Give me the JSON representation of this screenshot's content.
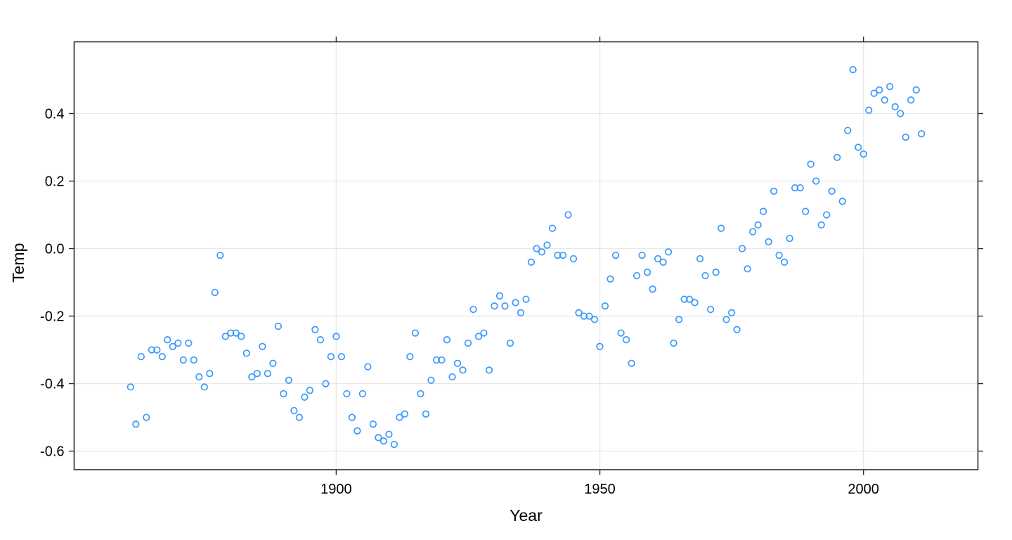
{
  "figure": {
    "background": "#ffffff",
    "border_color": "#2b2b2b",
    "grid_color": "#e8e8e8",
    "tick_color": "#2b2b2b",
    "text_color": "#000000",
    "point_color": "#3b99fc"
  },
  "chart_data": {
    "type": "scatter",
    "title": "",
    "xlabel": "Year",
    "ylabel": "Temp",
    "grid": true,
    "legend": "none",
    "marker": "open-circle",
    "xlim": [
      1850.3,
      2021.7
    ],
    "ylim": [
      -0.655,
      0.6125
    ],
    "x_ticks": [
      1900,
      1950,
      2000
    ],
    "x_tick_labels": [
      "1900",
      "1950",
      "2000"
    ],
    "y_ticks": [
      0.4,
      0.2,
      0.0,
      -0.2,
      -0.4,
      -0.6
    ],
    "y_tick_labels": [
      "0.4",
      "0.2",
      "0.0",
      "-0.2",
      "-0.4",
      "-0.6"
    ],
    "series": [
      {
        "name": "Temp",
        "x": [
          1861,
          1862,
          1863,
          1864,
          1865,
          1866,
          1867,
          1868,
          1869,
          1870,
          1871,
          1872,
          1873,
          1874,
          1875,
          1876,
          1877,
          1878,
          1879,
          1880,
          1881,
          1882,
          1883,
          1884,
          1885,
          1886,
          1887,
          1888,
          1889,
          1890,
          1891,
          1892,
          1893,
          1894,
          1895,
          1896,
          1897,
          1898,
          1899,
          1900,
          1901,
          1902,
          1903,
          1904,
          1905,
          1906,
          1907,
          1908,
          1909,
          1910,
          1911,
          1912,
          1913,
          1914,
          1915,
          1916,
          1917,
          1918,
          1919,
          1920,
          1921,
          1922,
          1923,
          1924,
          1925,
          1926,
          1927,
          1928,
          1929,
          1930,
          1931,
          1932,
          1933,
          1934,
          1935,
          1936,
          1937,
          1938,
          1939,
          1940,
          1941,
          1942,
          1943,
          1944,
          1945,
          1946,
          1947,
          1948,
          1949,
          1950,
          1951,
          1952,
          1953,
          1954,
          1955,
          1956,
          1957,
          1958,
          1959,
          1960,
          1961,
          1962,
          1963,
          1964,
          1965,
          1966,
          1967,
          1968,
          1969,
          1970,
          1971,
          1972,
          1973,
          1974,
          1975,
          1976,
          1977,
          1978,
          1979,
          1980,
          1981,
          1982,
          1983,
          1984,
          1985,
          1986,
          1987,
          1988,
          1989,
          1990,
          1991,
          1992,
          1993,
          1994,
          1995,
          1996,
          1997,
          1998,
          1999,
          2000,
          2001,
          2002,
          2003,
          2004,
          2005,
          2006,
          2007,
          2008,
          2009,
          2010,
          2011
        ],
        "y": [
          -0.41,
          -0.52,
          -0.32,
          -0.5,
          -0.3,
          -0.3,
          -0.32,
          -0.27,
          -0.29,
          -0.28,
          -0.33,
          -0.28,
          -0.33,
          -0.38,
          -0.41,
          -0.37,
          -0.13,
          -0.02,
          -0.26,
          -0.25,
          -0.25,
          -0.26,
          -0.31,
          -0.38,
          -0.37,
          -0.29,
          -0.37,
          -0.34,
          -0.23,
          -0.43,
          -0.39,
          -0.48,
          -0.5,
          -0.44,
          -0.42,
          -0.24,
          -0.27,
          -0.4,
          -0.32,
          -0.26,
          -0.32,
          -0.43,
          -0.5,
          -0.54,
          -0.43,
          -0.35,
          -0.52,
          -0.56,
          -0.57,
          -0.55,
          -0.58,
          -0.5,
          -0.49,
          -0.32,
          -0.25,
          -0.43,
          -0.49,
          -0.39,
          -0.33,
          -0.33,
          -0.27,
          -0.38,
          -0.34,
          -0.36,
          -0.28,
          -0.18,
          -0.26,
          -0.25,
          -0.36,
          -0.17,
          -0.14,
          -0.17,
          -0.28,
          -0.16,
          -0.19,
          -0.15,
          -0.04,
          0.0,
          -0.01,
          0.01,
          0.06,
          -0.02,
          -0.02,
          0.1,
          -0.03,
          -0.19,
          -0.2,
          -0.2,
          -0.21,
          -0.29,
          -0.17,
          -0.09,
          -0.02,
          -0.25,
          -0.27,
          -0.34,
          -0.08,
          -0.02,
          -0.07,
          -0.12,
          -0.03,
          -0.04,
          -0.01,
          -0.28,
          -0.21,
          -0.15,
          -0.15,
          -0.16,
          -0.03,
          -0.08,
          -0.18,
          -0.07,
          0.06,
          -0.21,
          -0.19,
          -0.24,
          0.0,
          -0.06,
          0.05,
          0.07,
          0.11,
          0.02,
          0.17,
          -0.02,
          -0.04,
          0.03,
          0.18,
          0.18,
          0.11,
          0.25,
          0.2,
          0.07,
          0.1,
          0.17,
          0.27,
          0.14,
          0.35,
          0.53,
          0.3,
          0.28,
          0.41,
          0.46,
          0.47,
          0.44,
          0.48,
          0.42,
          0.4,
          0.33,
          0.44,
          0.47,
          0.34
        ]
      }
    ]
  }
}
